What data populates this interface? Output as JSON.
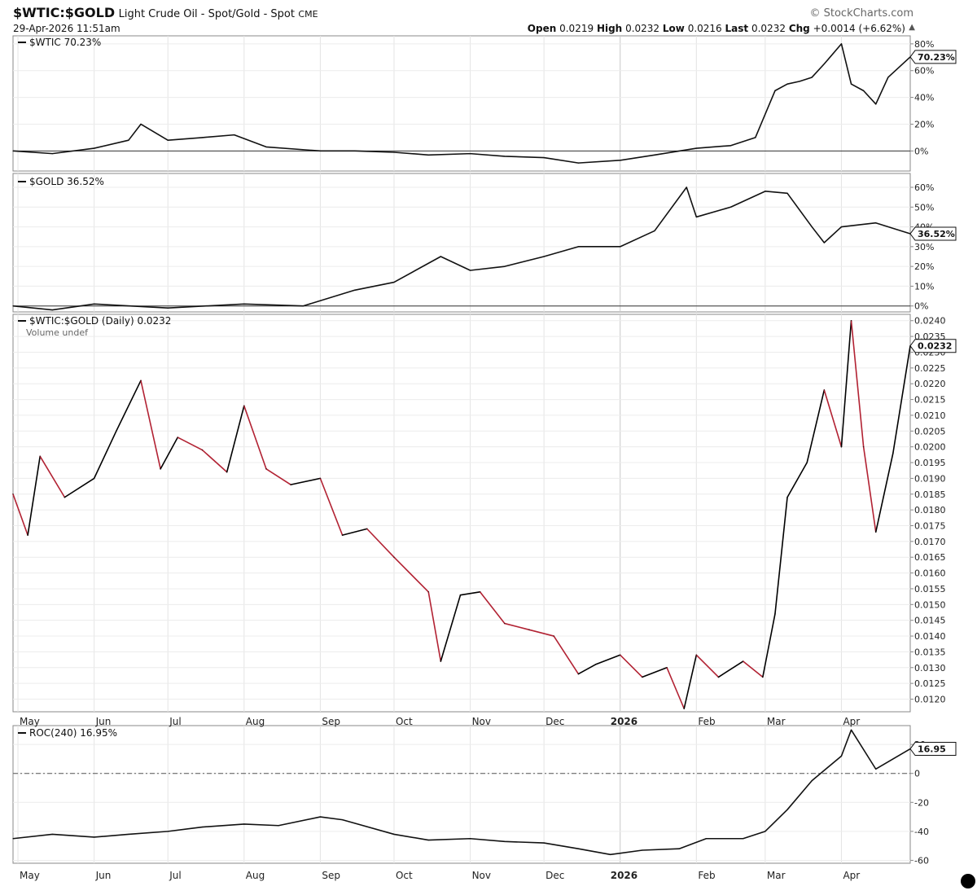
{
  "header": {
    "symbol": "$WTIC:$GOLD",
    "description": "Light Crude Oil - Spot/Gold - Spot",
    "exchange": "CME",
    "datetime": "29-Apr-2026 11:51am",
    "brand": "© StockCharts.com",
    "open_label": "Open",
    "open_value": "0.0219",
    "high_label": "High",
    "high_value": "0.0232",
    "low_label": "Low",
    "low_value": "0.0216",
    "last_label": "Last",
    "last_value": "0.0232",
    "chg_label": "Chg",
    "chg_value": "+0.0014 (+6.62%)",
    "chg_arrow": "▲"
  },
  "chart_data": [
    {
      "type": "line",
      "legend": "$WTIC 70.23%",
      "last_label": "70.23%",
      "ylim": [
        -15,
        86
      ],
      "yticks": [
        0,
        20,
        40,
        60,
        80
      ],
      "ytick_labels": [
        "0%",
        "20%",
        "40%",
        "60%",
        "80%"
      ],
      "x_start": "2025-04-29",
      "x": [
        "2025-04-29",
        "2025-05-15",
        "2025-06-01",
        "2025-06-15",
        "2025-06-20",
        "2025-07-01",
        "2025-07-15",
        "2025-07-28",
        "2025-08-10",
        "2025-09-01",
        "2025-09-15",
        "2025-10-01",
        "2025-10-15",
        "2025-11-01",
        "2025-11-15",
        "2025-12-01",
        "2025-12-15",
        "2026-01-01",
        "2026-01-15",
        "2026-02-01",
        "2026-02-15",
        "2026-02-25",
        "2026-03-05",
        "2026-03-10",
        "2026-03-15",
        "2026-03-20",
        "2026-03-25",
        "2026-04-01",
        "2026-04-05",
        "2026-04-10",
        "2026-04-15",
        "2026-04-20",
        "2026-04-29"
      ],
      "values": [
        0,
        -2,
        2,
        8,
        20,
        8,
        10,
        12,
        3,
        0,
        0,
        -1,
        -3,
        -2,
        -4,
        -5,
        -9,
        -7,
        -3,
        2,
        4,
        10,
        45,
        50,
        52,
        55,
        65,
        80,
        50,
        45,
        35,
        55,
        70.23
      ]
    },
    {
      "type": "line",
      "legend": "$GOLD 36.52%",
      "last_label": "36.52%",
      "ylim": [
        -3,
        67
      ],
      "yticks": [
        0,
        10,
        20,
        30,
        40,
        50,
        60
      ],
      "ytick_labels": [
        "0%",
        "10%",
        "20%",
        "30%",
        "40%",
        "50%",
        "60%"
      ],
      "x": [
        "2025-04-29",
        "2025-05-15",
        "2025-06-01",
        "2025-07-01",
        "2025-08-01",
        "2025-08-25",
        "2025-09-15",
        "2025-10-01",
        "2025-10-20",
        "2025-11-01",
        "2025-11-15",
        "2025-12-01",
        "2025-12-15",
        "2026-01-01",
        "2026-01-15",
        "2026-01-28",
        "2026-02-01",
        "2026-02-15",
        "2026-03-01",
        "2026-03-10",
        "2026-03-20",
        "2026-03-25",
        "2026-04-01",
        "2026-04-15",
        "2026-04-29"
      ],
      "values": [
        0,
        -2,
        1,
        -1,
        1,
        0,
        8,
        12,
        25,
        18,
        20,
        25,
        30,
        30,
        38,
        60,
        45,
        50,
        58,
        57,
        40,
        32,
        40,
        42,
        36.52
      ]
    },
    {
      "type": "line",
      "legend": "$WTIC:$GOLD (Daily) 0.0232",
      "volume_note": "Volume undef",
      "last_label": "0.0232",
      "ylim": [
        0.0116,
        0.0242
      ],
      "yticks": [
        0.012,
        0.0125,
        0.013,
        0.0135,
        0.014,
        0.0145,
        0.015,
        0.0155,
        0.016,
        0.0165,
        0.017,
        0.0175,
        0.018,
        0.0185,
        0.019,
        0.0195,
        0.02,
        0.0205,
        0.021,
        0.0215,
        0.022,
        0.0225,
        0.023,
        0.0235,
        0.024
      ],
      "ytick_labels": [
        "0.0120",
        "0.0125",
        "0.0130",
        "0.0135",
        "0.0140",
        "0.0145",
        "0.0150",
        "0.0155",
        "0.0160",
        "0.0165",
        "0.0170",
        "0.0175",
        "0.0180",
        "0.0185",
        "0.0190",
        "0.0195",
        "0.0200",
        "0.0205",
        "0.0210",
        "0.0215",
        "0.0220",
        "0.0225",
        "0.0230",
        "0.0235",
        "0.0240"
      ],
      "up_color": "#000000",
      "down_color": "#b22233",
      "x": [
        "2025-04-29",
        "2025-05-05",
        "2025-05-10",
        "2025-05-20",
        "2025-06-01",
        "2025-06-10",
        "2025-06-20",
        "2025-06-28",
        "2025-07-05",
        "2025-07-15",
        "2025-07-25",
        "2025-08-01",
        "2025-08-10",
        "2025-08-20",
        "2025-09-01",
        "2025-09-10",
        "2025-09-20",
        "2025-10-01",
        "2025-10-15",
        "2025-10-20",
        "2025-10-28",
        "2025-11-05",
        "2025-11-15",
        "2025-11-25",
        "2025-12-05",
        "2025-12-15",
        "2025-12-22",
        "2026-01-01",
        "2026-01-10",
        "2026-01-20",
        "2026-01-27",
        "2026-02-01",
        "2026-02-10",
        "2026-02-20",
        "2026-02-28",
        "2026-03-05",
        "2026-03-10",
        "2026-03-18",
        "2026-03-25",
        "2026-04-01",
        "2026-04-05",
        "2026-04-10",
        "2026-04-15",
        "2026-04-22",
        "2026-04-29"
      ],
      "values": [
        0.0185,
        0.0172,
        0.0197,
        0.0184,
        0.019,
        0.0205,
        0.0221,
        0.0193,
        0.0203,
        0.0199,
        0.0192,
        0.0213,
        0.0193,
        0.0188,
        0.019,
        0.0172,
        0.0174,
        0.0165,
        0.0154,
        0.0132,
        0.0153,
        0.0154,
        0.0144,
        0.0142,
        0.014,
        0.0128,
        0.0131,
        0.0134,
        0.0127,
        0.013,
        0.0117,
        0.0134,
        0.0127,
        0.0132,
        0.0127,
        0.0147,
        0.0184,
        0.0195,
        0.0218,
        0.02,
        0.024,
        0.02,
        0.0173,
        0.0198,
        0.0232
      ]
    },
    {
      "type": "line",
      "legend": "ROC(240) 16.95%",
      "last_label": "16.95",
      "ylim": [
        -62,
        33
      ],
      "yticks": [
        -60,
        -40,
        -20,
        0,
        20
      ],
      "ytick_labels": [
        "-60",
        "-40",
        "-20",
        "0",
        "20"
      ],
      "zero_line": true,
      "x": [
        "2025-04-29",
        "2025-05-15",
        "2025-06-01",
        "2025-06-15",
        "2025-07-01",
        "2025-07-15",
        "2025-08-01",
        "2025-08-15",
        "2025-09-01",
        "2025-09-10",
        "2025-10-01",
        "2025-10-15",
        "2025-11-01",
        "2025-11-15",
        "2025-12-01",
        "2025-12-15",
        "2025-12-28",
        "2026-01-10",
        "2026-01-25",
        "2026-02-05",
        "2026-02-20",
        "2026-03-01",
        "2026-03-10",
        "2026-03-20",
        "2026-04-01",
        "2026-04-05",
        "2026-04-15",
        "2026-04-22",
        "2026-04-29"
      ],
      "values": [
        -45,
        -42,
        -44,
        -42,
        -40,
        -37,
        -35,
        -36,
        -30,
        -32,
        -42,
        -46,
        -45,
        -47,
        -48,
        -52,
        -56,
        -53,
        -52,
        -45,
        -45,
        -40,
        -25,
        -5,
        12,
        30,
        3,
        10,
        16.95
      ]
    }
  ],
  "x_axis": {
    "labels": [
      {
        "date": "2025-05-01",
        "label": "May"
      },
      {
        "date": "2025-06-01",
        "label": "Jun"
      },
      {
        "date": "2025-07-01",
        "label": "Jul"
      },
      {
        "date": "2025-08-01",
        "label": "Aug"
      },
      {
        "date": "2025-09-01",
        "label": "Sep"
      },
      {
        "date": "2025-10-01",
        "label": "Oct"
      },
      {
        "date": "2025-11-01",
        "label": "Nov"
      },
      {
        "date": "2025-12-01",
        "label": "Dec"
      },
      {
        "date": "2026-01-01",
        "label": "2026",
        "bold": true
      },
      {
        "date": "2026-02-01",
        "label": "Feb"
      },
      {
        "date": "2026-03-01",
        "label": "Mar"
      },
      {
        "date": "2026-04-01",
        "label": "Apr"
      }
    ],
    "x_end": "2026-04-29"
  }
}
